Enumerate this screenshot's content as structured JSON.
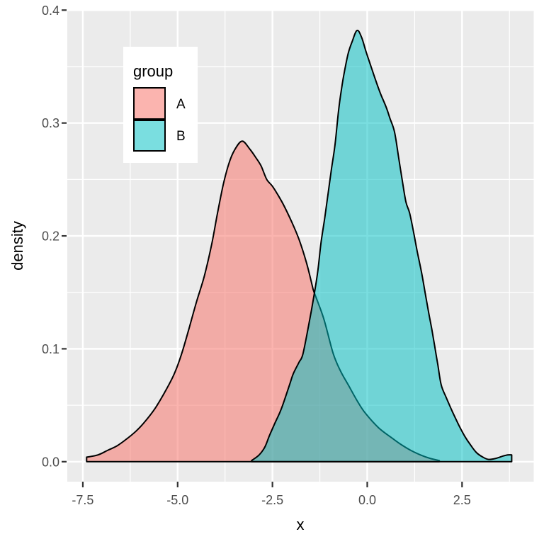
{
  "chart_data": {
    "type": "area",
    "subtype": "density",
    "title": "",
    "xlabel": "x",
    "ylabel": "density",
    "grid": true,
    "legend": {
      "title": "group",
      "position": "inside-top-left",
      "entries": [
        {
          "label": "A",
          "color": "#F8766D"
        },
        {
          "label": "B",
          "color": "#00BFC4"
        }
      ]
    },
    "xlim": [
      -7.91,
      4.39
    ],
    "ylim": [
      -0.0177,
      0.4005
    ],
    "x_ticks": [
      -7.5,
      -5.0,
      -2.5,
      0.0,
      2.5
    ],
    "x_tick_labels": [
      "-7.5",
      "-5.0",
      "-2.5",
      "0.0",
      "2.5"
    ],
    "y_ticks": [
      0.0,
      0.1,
      0.2,
      0.3,
      0.4
    ],
    "y_tick_labels": [
      "0.0",
      "0.1",
      "0.2",
      "0.3",
      "0.4"
    ],
    "x_minor_ticks": [
      -6.25,
      -3.75,
      -1.25,
      1.25,
      3.75
    ],
    "y_minor_ticks": [
      0.05,
      0.15,
      0.25,
      0.35
    ],
    "series": [
      {
        "name": "A",
        "color": "#F8766D",
        "fill_opacity": 0.55,
        "outline_color": "#000000",
        "peak": {
          "x": -3.3,
          "y": 0.284
        },
        "points": [
          [
            -7.4,
            0.004
          ],
          [
            -7.1,
            0.006
          ],
          [
            -6.85,
            0.01
          ],
          [
            -6.6,
            0.014
          ],
          [
            -6.35,
            0.02
          ],
          [
            -6.1,
            0.027
          ],
          [
            -5.9,
            0.034
          ],
          [
            -5.6,
            0.047
          ],
          [
            -5.35,
            0.061
          ],
          [
            -5.1,
            0.077
          ],
          [
            -4.9,
            0.095
          ],
          [
            -4.7,
            0.118
          ],
          [
            -4.5,
            0.142
          ],
          [
            -4.3,
            0.164
          ],
          [
            -4.1,
            0.193
          ],
          [
            -3.95,
            0.22
          ],
          [
            -3.8,
            0.245
          ],
          [
            -3.65,
            0.264
          ],
          [
            -3.5,
            0.276
          ],
          [
            -3.3,
            0.284
          ],
          [
            -3.1,
            0.277
          ],
          [
            -2.95,
            0.27
          ],
          [
            -2.8,
            0.262
          ],
          [
            -2.65,
            0.25
          ],
          [
            -2.5,
            0.244
          ],
          [
            -2.35,
            0.236
          ],
          [
            -2.2,
            0.227
          ],
          [
            -2.0,
            0.213
          ],
          [
            -1.8,
            0.197
          ],
          [
            -1.6,
            0.176
          ],
          [
            -1.45,
            0.156
          ],
          [
            -1.4,
            0.15
          ],
          [
            -1.15,
            0.127
          ],
          [
            -0.9,
            0.096
          ],
          [
            -0.7,
            0.08
          ],
          [
            -0.5,
            0.068
          ],
          [
            -0.25,
            0.053
          ],
          [
            -0.05,
            0.043
          ],
          [
            0.3,
            0.03
          ],
          [
            0.65,
            0.021
          ],
          [
            0.9,
            0.015
          ],
          [
            1.15,
            0.01
          ],
          [
            1.4,
            0.006
          ],
          [
            1.65,
            0.003
          ],
          [
            1.9,
            0.001
          ]
        ]
      },
      {
        "name": "B",
        "color": "#00BFC4",
        "fill_opacity": 0.52,
        "outline_color": "#000000",
        "peak": {
          "x": -0.27,
          "y": 0.382
        },
        "points": [
          [
            -3.05,
            0.001
          ],
          [
            -2.85,
            0.006
          ],
          [
            -2.7,
            0.013
          ],
          [
            -2.58,
            0.023
          ],
          [
            -2.45,
            0.033
          ],
          [
            -2.3,
            0.044
          ],
          [
            -2.2,
            0.053
          ],
          [
            -2.05,
            0.068
          ],
          [
            -1.95,
            0.078
          ],
          [
            -1.8,
            0.088
          ],
          [
            -1.7,
            0.095
          ],
          [
            -1.55,
            0.12
          ],
          [
            -1.4,
            0.148
          ],
          [
            -1.3,
            0.17
          ],
          [
            -1.22,
            0.194
          ],
          [
            -1.12,
            0.216
          ],
          [
            -1.03,
            0.238
          ],
          [
            -0.94,
            0.26
          ],
          [
            -0.85,
            0.281
          ],
          [
            -0.76,
            0.31
          ],
          [
            -0.68,
            0.33
          ],
          [
            -0.6,
            0.346
          ],
          [
            -0.5,
            0.362
          ],
          [
            -0.4,
            0.372
          ],
          [
            -0.27,
            0.382
          ],
          [
            -0.15,
            0.376
          ],
          [
            -0.03,
            0.363
          ],
          [
            0.1,
            0.35
          ],
          [
            0.22,
            0.338
          ],
          [
            0.35,
            0.326
          ],
          [
            0.5,
            0.314
          ],
          [
            0.6,
            0.304
          ],
          [
            0.72,
            0.292
          ],
          [
            0.83,
            0.269
          ],
          [
            0.92,
            0.25
          ],
          [
            1.02,
            0.23
          ],
          [
            1.12,
            0.22
          ],
          [
            1.24,
            0.2
          ],
          [
            1.32,
            0.186
          ],
          [
            1.43,
            0.168
          ],
          [
            1.52,
            0.151
          ],
          [
            1.62,
            0.132
          ],
          [
            1.71,
            0.116
          ],
          [
            1.78,
            0.102
          ],
          [
            1.86,
            0.086
          ],
          [
            1.95,
            0.068
          ],
          [
            2.08,
            0.057
          ],
          [
            2.25,
            0.044
          ],
          [
            2.42,
            0.032
          ],
          [
            2.58,
            0.022
          ],
          [
            2.72,
            0.015
          ],
          [
            2.88,
            0.008
          ],
          [
            3.05,
            0.004
          ],
          [
            3.2,
            0.002
          ],
          [
            3.4,
            0.003
          ],
          [
            3.58,
            0.005
          ],
          [
            3.7,
            0.006
          ],
          [
            3.81,
            0.006
          ]
        ]
      }
    ],
    "colors": {
      "panel_background": "#EBEBEB",
      "grid": "#FFFFFF",
      "tick_mark": "#333333",
      "tick_text": "#4D4D4D",
      "axis_title_text": "#000000",
      "legend_background": "#FFFFFF",
      "figure_background": "#FFFFFF",
      "curve_outline": "#000000"
    }
  }
}
